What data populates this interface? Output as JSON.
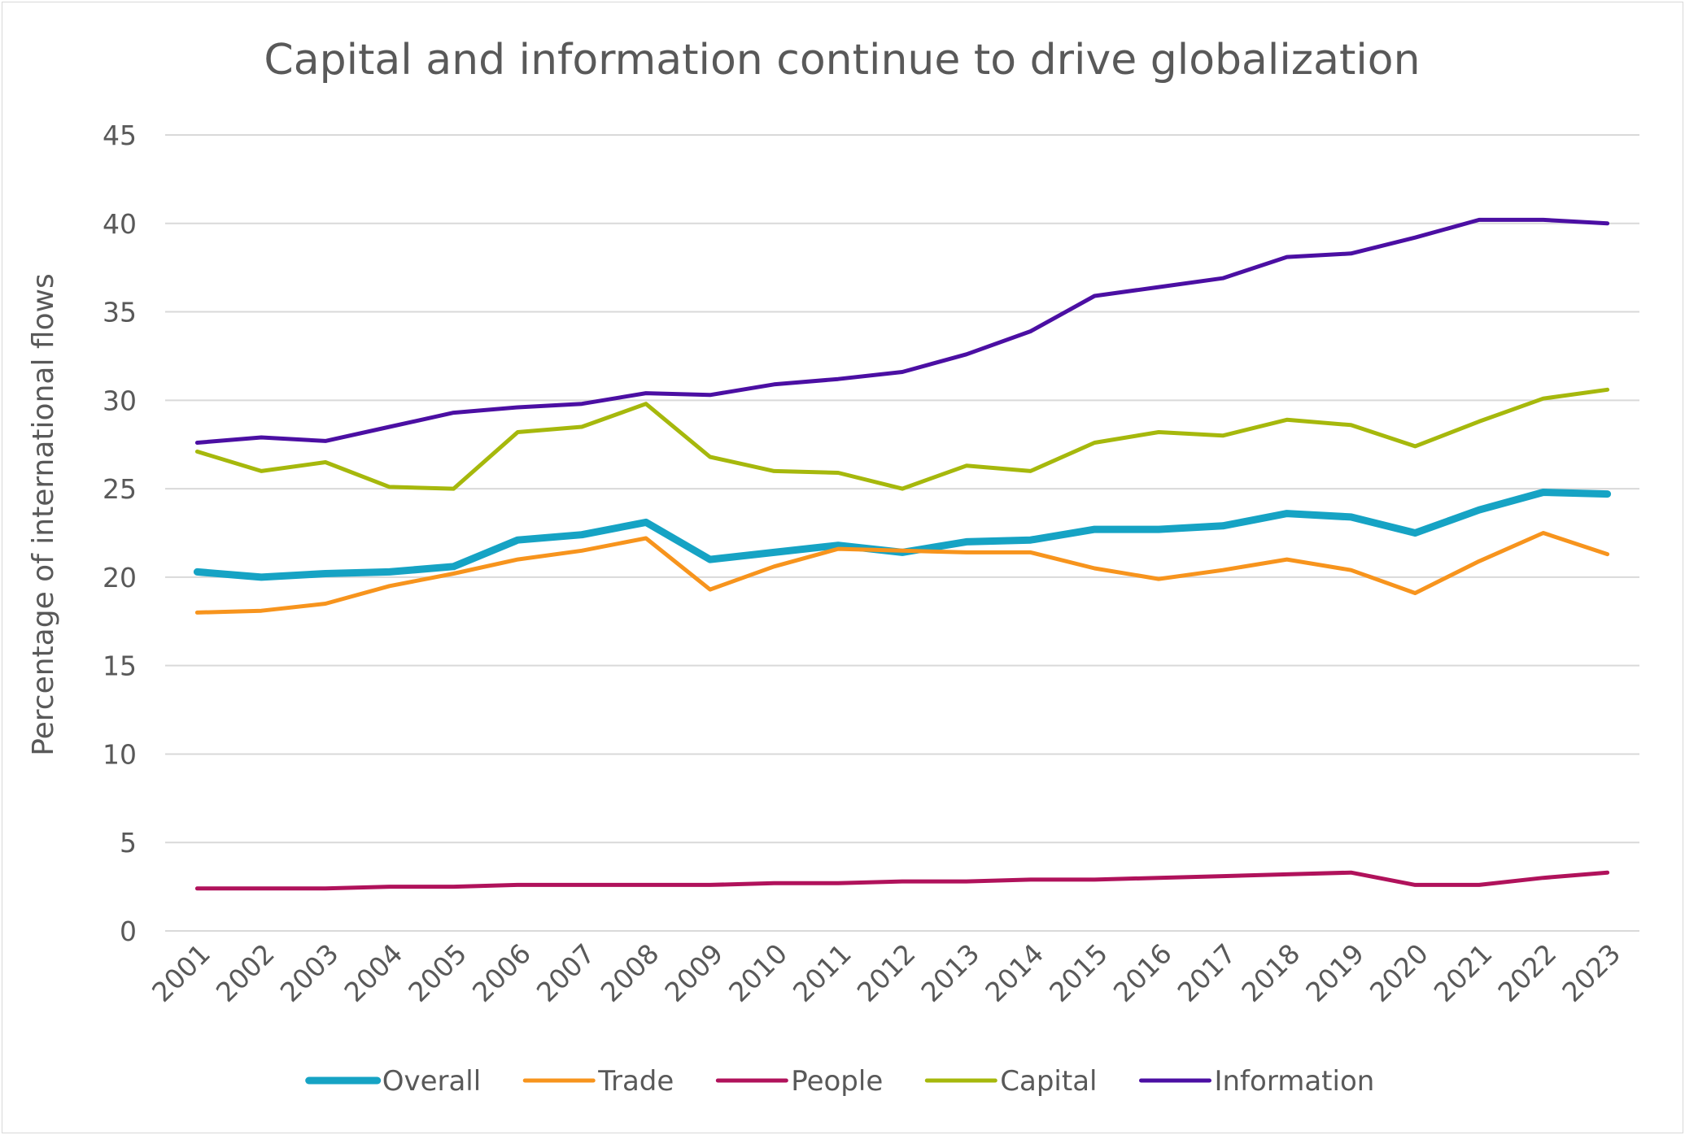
{
  "chart_data": {
    "type": "line",
    "title": "Capital and information continue to drive globalization",
    "xlabel": "",
    "ylabel": "Percentage of international flows",
    "ylim": [
      0,
      45
    ],
    "yticks": [
      0,
      5,
      10,
      15,
      20,
      25,
      30,
      35,
      40,
      45
    ],
    "grid": true,
    "legend_position": "bottom",
    "categories": [
      "2001",
      "2002",
      "2003",
      "2004",
      "2005",
      "2006",
      "2007",
      "2008",
      "2009",
      "2010",
      "2011",
      "2012",
      "2013",
      "2014",
      "2015",
      "2016",
      "2017",
      "2018",
      "2019",
      "2020",
      "2021",
      "2022",
      "2023"
    ],
    "series": [
      {
        "name": "Overall",
        "color": "#16a3c4",
        "values": [
          20.3,
          20.0,
          20.2,
          20.3,
          20.6,
          22.1,
          22.4,
          23.1,
          21.0,
          21.4,
          21.8,
          21.4,
          22.0,
          22.1,
          22.7,
          22.7,
          22.9,
          23.6,
          23.4,
          22.5,
          23.8,
          24.8,
          24.7
        ]
      },
      {
        "name": "Trade",
        "color": "#f7941d",
        "values": [
          18.0,
          18.1,
          18.5,
          19.5,
          20.2,
          21.0,
          21.5,
          22.2,
          19.3,
          20.6,
          21.6,
          21.5,
          21.4,
          21.4,
          20.5,
          19.9,
          20.4,
          21.0,
          20.4,
          19.1,
          20.9,
          22.5,
          21.3
        ]
      },
      {
        "name": "People",
        "color": "#b0125b",
        "values": [
          2.4,
          2.4,
          2.4,
          2.5,
          2.5,
          2.6,
          2.6,
          2.6,
          2.6,
          2.7,
          2.7,
          2.8,
          2.8,
          2.9,
          2.9,
          3.0,
          3.1,
          3.2,
          3.3,
          2.6,
          2.6,
          3.0,
          3.3
        ]
      },
      {
        "name": "Capital",
        "color": "#a6b80c",
        "values": [
          27.1,
          26.0,
          26.5,
          25.1,
          25.0,
          28.2,
          28.5,
          29.8,
          26.8,
          26.0,
          25.9,
          25.0,
          26.3,
          26.0,
          27.6,
          28.2,
          28.0,
          28.9,
          28.6,
          27.4,
          28.8,
          30.1,
          30.6
        ]
      },
      {
        "name": "Information",
        "color": "#4b0fa3",
        "values": [
          27.6,
          27.9,
          27.7,
          28.5,
          29.3,
          29.6,
          29.8,
          30.4,
          30.3,
          30.9,
          31.2,
          31.6,
          32.6,
          33.9,
          35.9,
          36.4,
          36.9,
          38.1,
          38.3,
          39.2,
          40.2,
          40.2,
          40.0
        ]
      }
    ]
  }
}
